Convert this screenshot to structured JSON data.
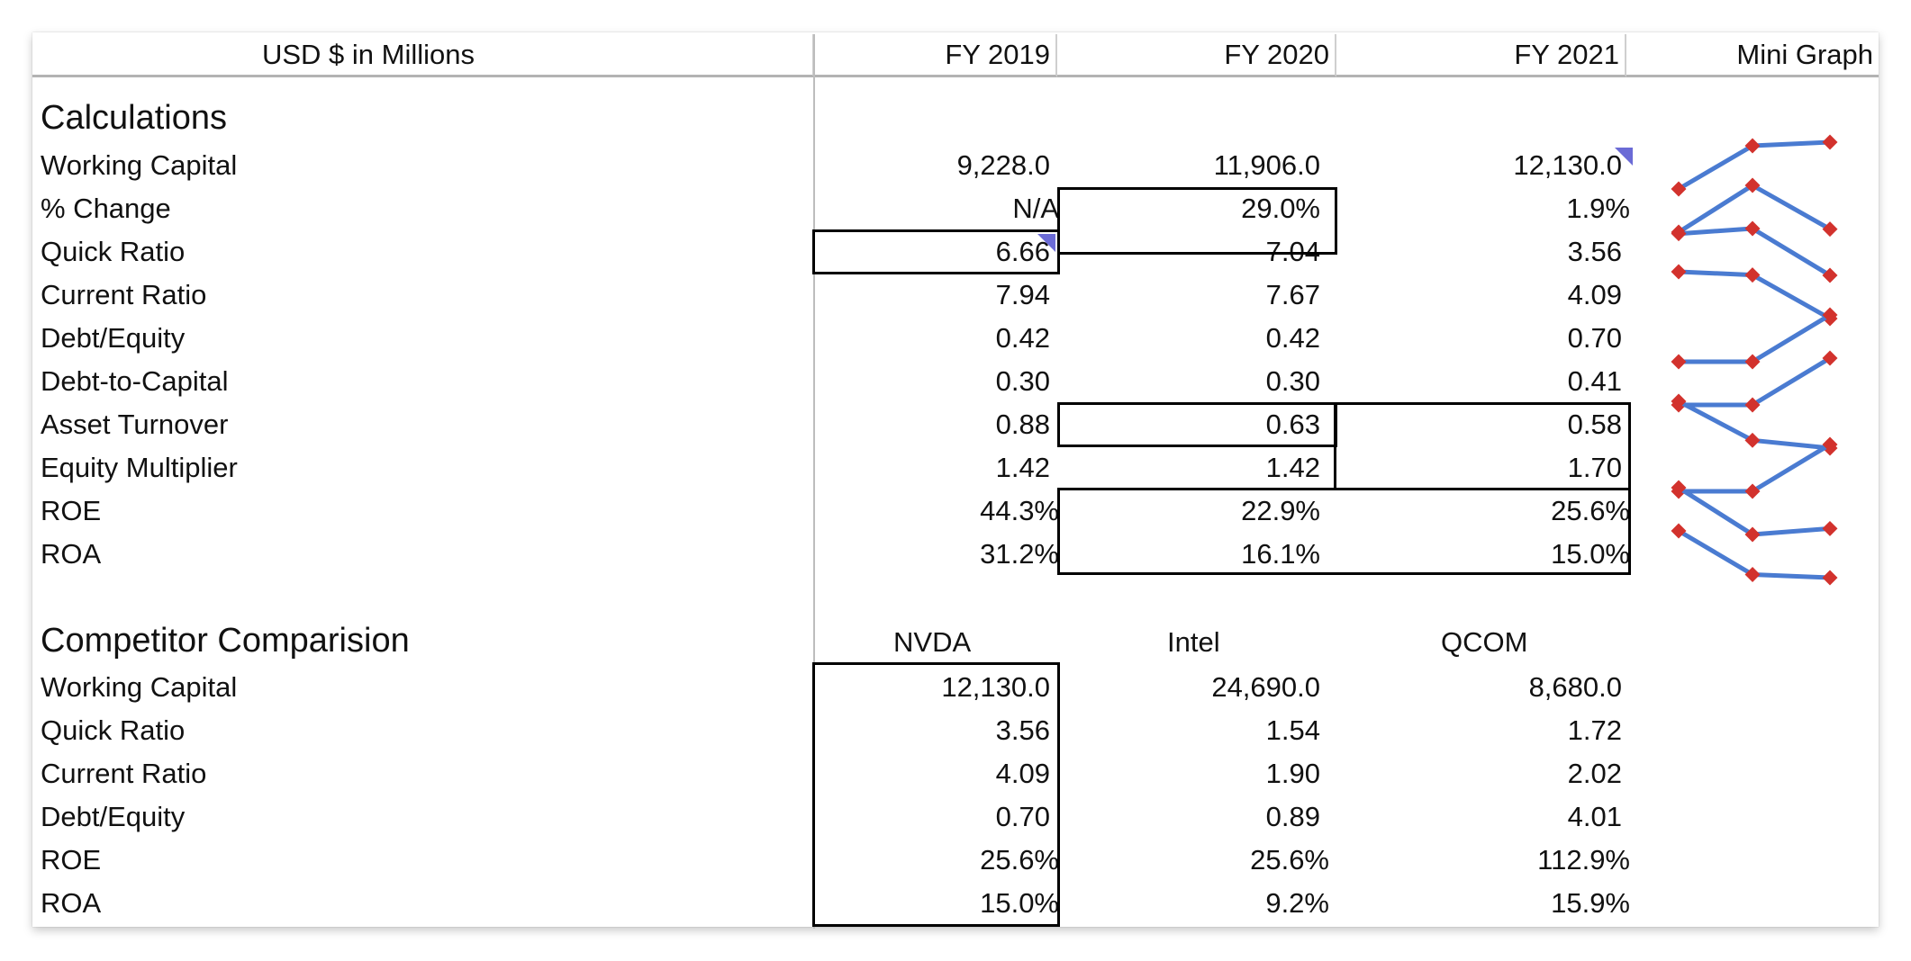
{
  "header": {
    "units": "USD $ in Millions",
    "fy2019": "FY 2019",
    "fy2020": "FY 2020",
    "fy2021": "FY 2021",
    "graph": "Mini Graph"
  },
  "calculations": {
    "title": "Calculations",
    "rows": [
      {
        "label": "Working Capital",
        "v": [
          "9,228.0",
          "11,906.0",
          "12,130.0"
        ],
        "n": [
          9228.0,
          11906.0,
          12130.0
        ]
      },
      {
        "label": "% Change",
        "v": [
          "N/A",
          "29.0%",
          "1.9%"
        ],
        "n": [
          0,
          29.0,
          1.9
        ]
      },
      {
        "label": "Quick Ratio",
        "v": [
          "6.66",
          "7.04",
          "3.56"
        ],
        "n": [
          6.66,
          7.04,
          3.56
        ]
      },
      {
        "label": "Current Ratio",
        "v": [
          "7.94",
          "7.67",
          "4.09"
        ],
        "n": [
          7.94,
          7.67,
          4.09
        ]
      },
      {
        "label": "Debt/Equity",
        "v": [
          "0.42",
          "0.42",
          "0.70"
        ],
        "n": [
          0.42,
          0.42,
          0.7
        ]
      },
      {
        "label": "Debt-to-Capital",
        "v": [
          "0.30",
          "0.30",
          "0.41"
        ],
        "n": [
          0.3,
          0.3,
          0.41
        ]
      },
      {
        "label": "Asset Turnover",
        "v": [
          "0.88",
          "0.63",
          "0.58"
        ],
        "n": [
          0.88,
          0.63,
          0.58
        ]
      },
      {
        "label": "Equity Multiplier",
        "v": [
          "1.42",
          "1.42",
          "1.70"
        ],
        "n": [
          1.42,
          1.42,
          1.7
        ]
      },
      {
        "label": "ROE",
        "v": [
          "44.3%",
          "22.9%",
          "25.6%"
        ],
        "n": [
          44.3,
          22.9,
          25.6
        ]
      },
      {
        "label": "ROA",
        "v": [
          "31.2%",
          "16.1%",
          "15.0%"
        ],
        "n": [
          31.2,
          16.1,
          15.0
        ]
      }
    ]
  },
  "competitors": {
    "title": "Competitor Comparision",
    "columns": [
      "NVDA",
      "Intel",
      "QCOM"
    ],
    "rows": [
      {
        "label": "Working Capital",
        "v": [
          "12,130.0",
          "24,690.0",
          "8,680.0"
        ]
      },
      {
        "label": "Quick Ratio",
        "v": [
          "3.56",
          "1.54",
          "1.72"
        ]
      },
      {
        "label": "Current Ratio",
        "v": [
          "4.09",
          "1.90",
          "2.02"
        ]
      },
      {
        "label": "Debt/Equity",
        "v": [
          "0.70",
          "0.89",
          "4.01"
        ]
      },
      {
        "label": "ROE",
        "v": [
          "25.6%",
          "25.6%",
          "112.9%"
        ]
      },
      {
        "label": "ROA",
        "v": [
          "15.0%",
          "9.2%",
          "15.9%"
        ]
      }
    ]
  },
  "colors": {
    "line": "#4a7bd1",
    "marker": "#d2322d",
    "comment": "#6b6bd6"
  }
}
